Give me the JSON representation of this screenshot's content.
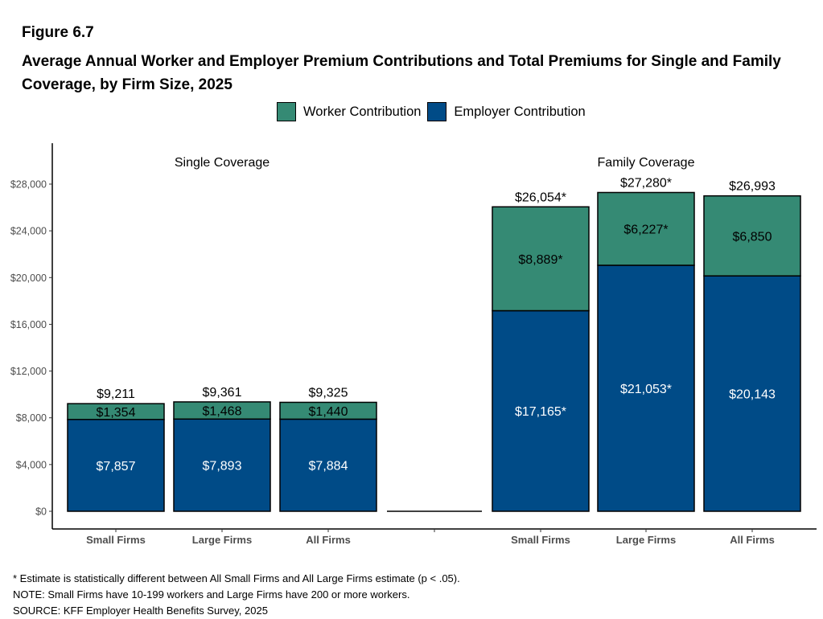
{
  "figure_label": "Figure 6.7",
  "title": "Average Annual Worker and Employer Premium Contributions and Total Premiums for Single and Family Coverage, by Firm Size, 2025",
  "colors": {
    "worker": "#358A74",
    "employer": "#004B87"
  },
  "chart_data": {
    "type": "bar",
    "stacked": true,
    "legend_position": "top",
    "grid": false,
    "ylim": [
      0,
      31500
    ],
    "yticks": [
      "$0",
      "$4,000",
      "$8,000",
      "$12,000",
      "$16,000",
      "$20,000",
      "$24,000",
      "$28,000"
    ],
    "ytick_values": [
      0,
      4000,
      8000,
      12000,
      16000,
      20000,
      24000,
      28000
    ],
    "panels": [
      "Single Coverage",
      "Family Coverage"
    ],
    "categories": [
      "Small Firms",
      "Large Firms",
      "All Firms",
      "",
      "Small Firms",
      "Large Firms",
      "All Firms"
    ],
    "series": [
      {
        "name": "Employer Contribution",
        "values": [
          7857,
          7893,
          7884,
          0,
          17165,
          21053,
          20143
        ],
        "labels": [
          "$7,857",
          "$7,893",
          "$7,884",
          "",
          "$17,165*",
          "$21,053*",
          "$20,143"
        ]
      },
      {
        "name": "Worker Contribution",
        "values": [
          1354,
          1468,
          1440,
          0,
          8889,
          6227,
          6850
        ],
        "labels": [
          "$1,354",
          "$1,468",
          "$1,440",
          "",
          "$8,889*",
          "$6,227*",
          "$6,850"
        ]
      }
    ],
    "totals": [
      9211,
      9361,
      9325,
      0,
      26054,
      27280,
      26993
    ],
    "total_labels": [
      "$9,211",
      "$9,361",
      "$9,325",
      "",
      "$26,054*",
      "$27,280*",
      "$26,993"
    ]
  },
  "notes": [
    "* Estimate is statistically different between All Small Firms and All Large Firms estimate (p < .05).",
    "NOTE: Small Firms have 10-199 workers and Large Firms have 200 or more workers.",
    "SOURCE: KFF Employer Health Benefits Survey, 2025"
  ]
}
